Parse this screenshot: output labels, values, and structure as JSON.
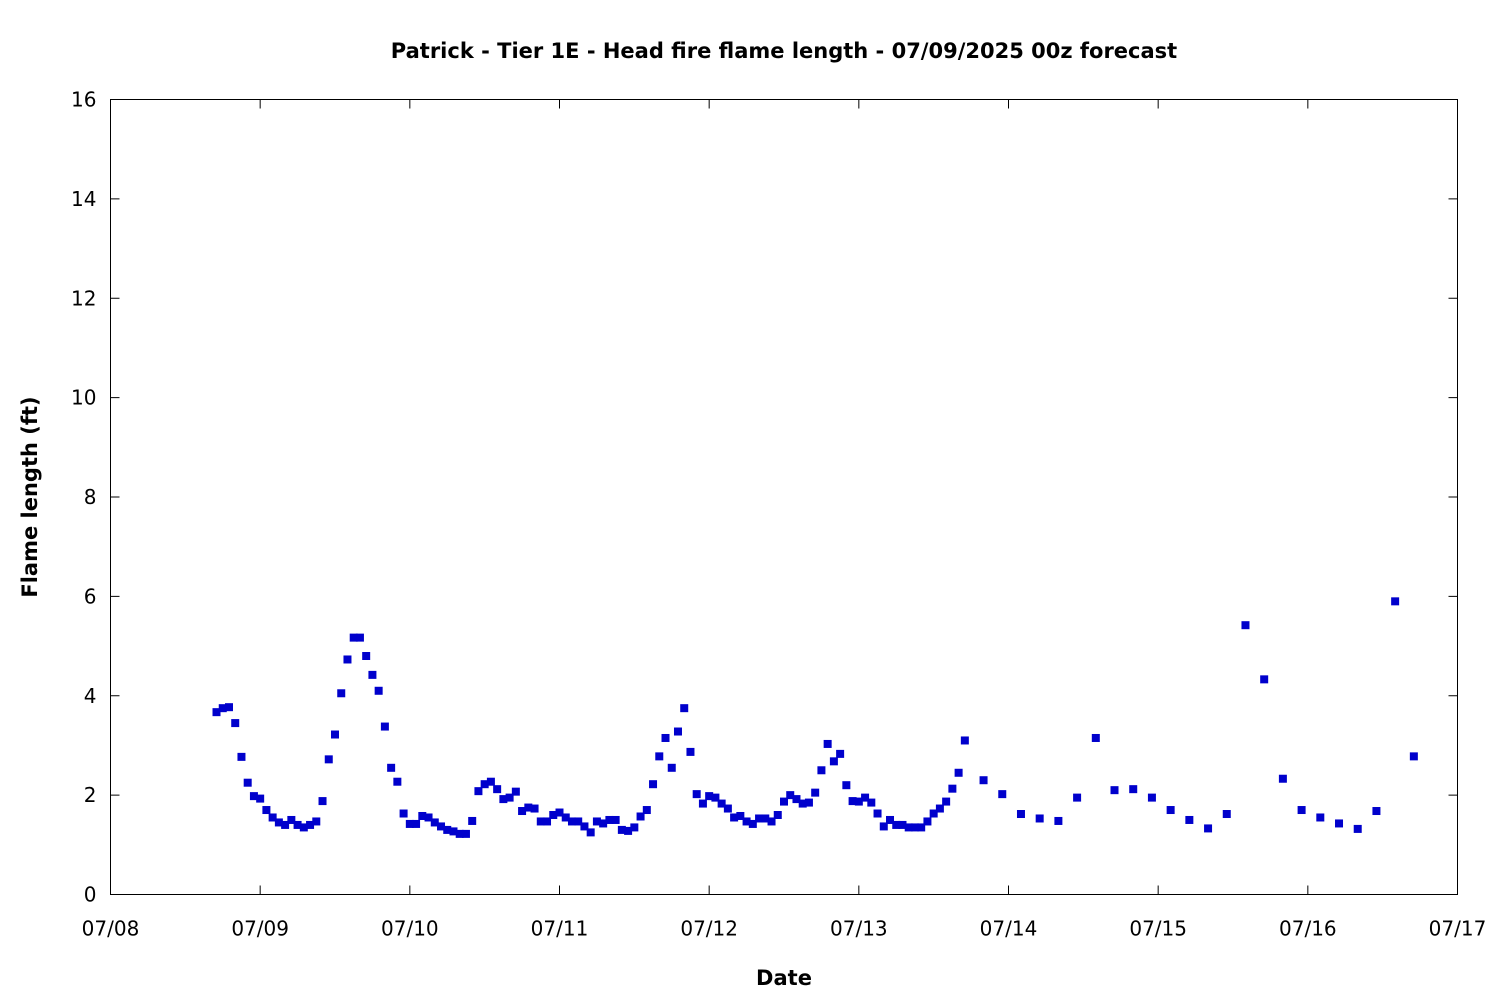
{
  "chart_data": {
    "type": "scatter",
    "title": "Patrick - Tier 1E - Head fire flame length - 07/09/2025 00z forecast",
    "xlabel": "Date",
    "ylabel": "Flame length (ft)",
    "xlim": [
      "2025-07-08T00:00",
      "2025-07-17T00:00"
    ],
    "ylim": [
      0,
      16
    ],
    "x_ticks": [
      "07/08",
      "07/09",
      "07/10",
      "07/11",
      "07/12",
      "07/13",
      "07/14",
      "07/15",
      "07/16",
      "07/17"
    ],
    "y_ticks": [
      "0",
      "2",
      "4",
      "6",
      "8",
      "10",
      "12",
      "14",
      "16"
    ],
    "grid": false,
    "marker_color": "#0000cc",
    "series": [
      {
        "points": [
          [
            "2025-07-08T17:00",
            3.67
          ],
          [
            "2025-07-08T18:00",
            3.75
          ],
          [
            "2025-07-08T19:00",
            3.77
          ],
          [
            "2025-07-08T20:00",
            3.45
          ],
          [
            "2025-07-08T21:00",
            2.77
          ],
          [
            "2025-07-08T22:00",
            2.25
          ],
          [
            "2025-07-08T23:00",
            1.98
          ],
          [
            "2025-07-09T00:00",
            1.93
          ],
          [
            "2025-07-09T01:00",
            1.7
          ],
          [
            "2025-07-09T02:00",
            1.55
          ],
          [
            "2025-07-09T03:00",
            1.45
          ],
          [
            "2025-07-09T04:00",
            1.4
          ],
          [
            "2025-07-09T05:00",
            1.5
          ],
          [
            "2025-07-09T06:00",
            1.4
          ],
          [
            "2025-07-09T07:00",
            1.35
          ],
          [
            "2025-07-09T08:00",
            1.4
          ],
          [
            "2025-07-09T09:00",
            1.47
          ],
          [
            "2025-07-09T10:00",
            1.88
          ],
          [
            "2025-07-09T11:00",
            2.72
          ],
          [
            "2025-07-09T12:00",
            3.22
          ],
          [
            "2025-07-09T13:00",
            4.05
          ],
          [
            "2025-07-09T14:00",
            4.73
          ],
          [
            "2025-07-09T15:00",
            5.17
          ],
          [
            "2025-07-09T16:00",
            5.17
          ],
          [
            "2025-07-09T17:00",
            4.8
          ],
          [
            "2025-07-09T18:00",
            4.42
          ],
          [
            "2025-07-09T19:00",
            4.1
          ],
          [
            "2025-07-09T20:00",
            3.38
          ],
          [
            "2025-07-09T21:00",
            2.55
          ],
          [
            "2025-07-09T22:00",
            2.27
          ],
          [
            "2025-07-09T23:00",
            1.63
          ],
          [
            "2025-07-10T00:00",
            1.42
          ],
          [
            "2025-07-10T01:00",
            1.42
          ],
          [
            "2025-07-10T02:00",
            1.58
          ],
          [
            "2025-07-10T03:00",
            1.55
          ],
          [
            "2025-07-10T04:00",
            1.45
          ],
          [
            "2025-07-10T05:00",
            1.37
          ],
          [
            "2025-07-10T06:00",
            1.3
          ],
          [
            "2025-07-10T07:00",
            1.27
          ],
          [
            "2025-07-10T08:00",
            1.22
          ],
          [
            "2025-07-10T09:00",
            1.22
          ],
          [
            "2025-07-10T10:00",
            1.48
          ],
          [
            "2025-07-10T11:00",
            2.08
          ],
          [
            "2025-07-10T12:00",
            2.22
          ],
          [
            "2025-07-10T13:00",
            2.27
          ],
          [
            "2025-07-10T14:00",
            2.12
          ],
          [
            "2025-07-10T15:00",
            1.92
          ],
          [
            "2025-07-10T16:00",
            1.95
          ],
          [
            "2025-07-10T17:00",
            2.07
          ],
          [
            "2025-07-10T18:00",
            1.68
          ],
          [
            "2025-07-10T19:00",
            1.75
          ],
          [
            "2025-07-10T20:00",
            1.73
          ],
          [
            "2025-07-10T21:00",
            1.47
          ],
          [
            "2025-07-10T22:00",
            1.47
          ],
          [
            "2025-07-10T23:00",
            1.6
          ],
          [
            "2025-07-11T00:00",
            1.65
          ],
          [
            "2025-07-11T01:00",
            1.55
          ],
          [
            "2025-07-11T02:00",
            1.47
          ],
          [
            "2025-07-11T03:00",
            1.47
          ],
          [
            "2025-07-11T04:00",
            1.37
          ],
          [
            "2025-07-11T05:00",
            1.25
          ],
          [
            "2025-07-11T06:00",
            1.47
          ],
          [
            "2025-07-11T07:00",
            1.43
          ],
          [
            "2025-07-11T08:00",
            1.5
          ],
          [
            "2025-07-11T09:00",
            1.5
          ],
          [
            "2025-07-11T10:00",
            1.3
          ],
          [
            "2025-07-11T11:00",
            1.28
          ],
          [
            "2025-07-11T12:00",
            1.35
          ],
          [
            "2025-07-11T13:00",
            1.57
          ],
          [
            "2025-07-11T14:00",
            1.7
          ],
          [
            "2025-07-11T15:00",
            2.22
          ],
          [
            "2025-07-11T16:00",
            2.78
          ],
          [
            "2025-07-11T17:00",
            3.15
          ],
          [
            "2025-07-11T18:00",
            2.55
          ],
          [
            "2025-07-11T19:00",
            3.28
          ],
          [
            "2025-07-11T20:00",
            3.75
          ],
          [
            "2025-07-11T21:00",
            2.87
          ],
          [
            "2025-07-11T22:00",
            2.02
          ],
          [
            "2025-07-11T23:00",
            1.83
          ],
          [
            "2025-07-12T00:00",
            1.98
          ],
          [
            "2025-07-12T01:00",
            1.95
          ],
          [
            "2025-07-12T02:00",
            1.83
          ],
          [
            "2025-07-12T03:00",
            1.73
          ],
          [
            "2025-07-12T04:00",
            1.55
          ],
          [
            "2025-07-12T05:00",
            1.58
          ],
          [
            "2025-07-12T06:00",
            1.47
          ],
          [
            "2025-07-12T07:00",
            1.42
          ],
          [
            "2025-07-12T08:00",
            1.53
          ],
          [
            "2025-07-12T09:00",
            1.53
          ],
          [
            "2025-07-12T10:00",
            1.47
          ],
          [
            "2025-07-12T11:00",
            1.6
          ],
          [
            "2025-07-12T12:00",
            1.87
          ],
          [
            "2025-07-12T13:00",
            2.0
          ],
          [
            "2025-07-12T14:00",
            1.92
          ],
          [
            "2025-07-12T15:00",
            1.83
          ],
          [
            "2025-07-12T16:00",
            1.85
          ],
          [
            "2025-07-12T17:00",
            2.05
          ],
          [
            "2025-07-12T18:00",
            2.5
          ],
          [
            "2025-07-12T19:00",
            3.03
          ],
          [
            "2025-07-12T20:00",
            2.68
          ],
          [
            "2025-07-12T21:00",
            2.83
          ],
          [
            "2025-07-12T22:00",
            2.2
          ],
          [
            "2025-07-12T23:00",
            1.88
          ],
          [
            "2025-07-13T00:00",
            1.87
          ],
          [
            "2025-07-13T01:00",
            1.95
          ],
          [
            "2025-07-13T02:00",
            1.85
          ],
          [
            "2025-07-13T03:00",
            1.63
          ],
          [
            "2025-07-13T04:00",
            1.37
          ],
          [
            "2025-07-13T05:00",
            1.5
          ],
          [
            "2025-07-13T06:00",
            1.4
          ],
          [
            "2025-07-13T07:00",
            1.4
          ],
          [
            "2025-07-13T08:00",
            1.35
          ],
          [
            "2025-07-13T09:00",
            1.35
          ],
          [
            "2025-07-13T10:00",
            1.35
          ],
          [
            "2025-07-13T11:00",
            1.47
          ],
          [
            "2025-07-13T12:00",
            1.63
          ],
          [
            "2025-07-13T13:00",
            1.73
          ],
          [
            "2025-07-13T14:00",
            1.87
          ],
          [
            "2025-07-13T15:00",
            2.13
          ],
          [
            "2025-07-13T16:00",
            2.45
          ],
          [
            "2025-07-13T17:00",
            3.1
          ],
          [
            "2025-07-13T20:00",
            2.3
          ],
          [
            "2025-07-13T23:00",
            2.02
          ],
          [
            "2025-07-14T02:00",
            1.62
          ],
          [
            "2025-07-14T05:00",
            1.53
          ],
          [
            "2025-07-14T08:00",
            1.48
          ],
          [
            "2025-07-14T11:00",
            1.95
          ],
          [
            "2025-07-14T14:00",
            3.15
          ],
          [
            "2025-07-14T17:00",
            2.1
          ],
          [
            "2025-07-14T20:00",
            2.12
          ],
          [
            "2025-07-14T23:00",
            1.95
          ],
          [
            "2025-07-15T02:00",
            1.7
          ],
          [
            "2025-07-15T05:00",
            1.5
          ],
          [
            "2025-07-15T08:00",
            1.33
          ],
          [
            "2025-07-15T11:00",
            1.62
          ],
          [
            "2025-07-15T14:00",
            5.42
          ],
          [
            "2025-07-15T17:00",
            4.33
          ],
          [
            "2025-07-15T20:00",
            2.33
          ],
          [
            "2025-07-15T23:00",
            1.7
          ],
          [
            "2025-07-16T02:00",
            1.55
          ],
          [
            "2025-07-16T05:00",
            1.43
          ],
          [
            "2025-07-16T08:00",
            1.32
          ],
          [
            "2025-07-16T11:00",
            1.68
          ],
          [
            "2025-07-16T14:00",
            5.9
          ],
          [
            "2025-07-16T17:00",
            2.78
          ]
        ]
      }
    ]
  }
}
